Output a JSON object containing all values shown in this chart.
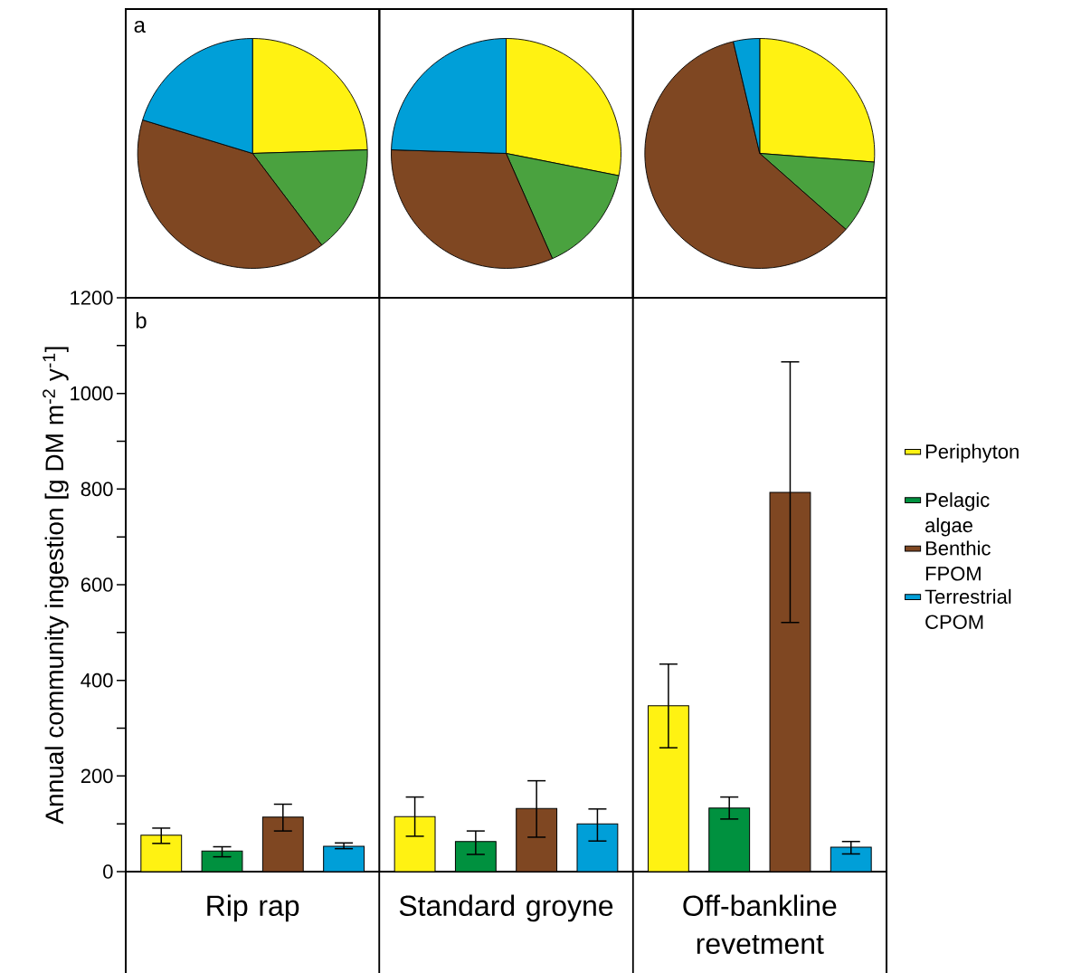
{
  "chart_data": [
    {
      "type": "pie",
      "categories": [
        null,
        null,
        null,
        null
      ],
      "values": [
        24.5,
        15.2,
        40,
        20.3
      ],
      "colors": [
        "#fff212",
        "#4aa23f",
        "#7f4722",
        "#009fd8"
      ],
      "annotations": [
        "a"
      ]
    },
    {
      "type": "pie",
      "categories": [
        null,
        null,
        null,
        null
      ],
      "values": [
        28.1,
        15.3,
        32.1,
        24.5
      ],
      "colors": [
        "#fff212",
        "#4aa23f",
        "#7f4722",
        "#009fd8"
      ]
    },
    {
      "type": "pie",
      "categories": [
        null,
        null,
        null,
        null
      ],
      "values": [
        26.2,
        10.3,
        59.8,
        3.7
      ],
      "colors": [
        "#fff212",
        "#4aa23f",
        "#7f4722",
        "#009fd8"
      ]
    },
    {
      "type": "bar",
      "categories": [
        "Rip rap",
        "Standard groyne",
        "Off-bankline revetment"
      ],
      "ylabel": "Annual community ingestion [g DM m$^{-2}$ y$^{-1}$]",
      "ylim": [
        0,
        1200
      ],
      "yticks": [
        0,
        {
          "value": 100,
          "label": null
        },
        200,
        {
          "value": 300,
          "label": null
        },
        400,
        {
          "value": 500,
          "label": null
        },
        600,
        {
          "value": 700,
          "label": null
        },
        800,
        {
          "value": 900,
          "label": null
        },
        1000,
        {
          "value": 1100,
          "label": null
        },
        1200
      ],
      "legend": "right",
      "annotations": [
        "b"
      ],
      "series": [
        {
          "name": "Periphyton",
          "color": "#fff212",
          "values": [
            76,
            115,
            347
          ],
          "errors": [
            [
              59,
              91
            ],
            [
              74,
              156
            ],
            [
              259,
              434
            ]
          ]
        },
        {
          "name": "Pelagic algae",
          "color": "#00913f",
          "values": [
            43,
            63,
            133
          ],
          "errors": [
            [
              31,
              52
            ],
            [
              36,
              85
            ],
            [
              110,
              156
            ]
          ]
        },
        {
          "name": "Benthic FPOM",
          "color": "#7f4722",
          "values": [
            114,
            132,
            793
          ],
          "errors": [
            [
              85,
              141
            ],
            [
              72,
              190
            ],
            [
              521,
              1066
            ]
          ]
        },
        {
          "name": "Terrestrial CPOM",
          "color": "#009fd8",
          "values": [
            53,
            100,
            51
          ],
          "errors": [
            [
              48,
              60
            ],
            [
              64,
              131
            ],
            [
              37,
              63
            ]
          ]
        }
      ]
    }
  ]
}
